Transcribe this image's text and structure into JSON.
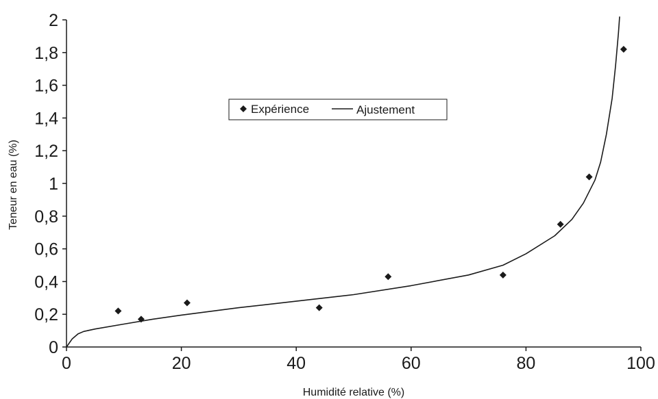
{
  "chart_data": {
    "type": "scatter",
    "title": "",
    "xlabel": "Humidité relative (%)",
    "ylabel": "Teneur en eau (%)",
    "xlim": [
      0,
      100
    ],
    "ylim": [
      0,
      2
    ],
    "grid": false,
    "legend_position": "top-center",
    "x_ticks": [
      "0",
      "20",
      "40",
      "60",
      "80",
      "100"
    ],
    "y_ticks": [
      "0",
      "0,2",
      "0,4",
      "0,6",
      "0,8",
      "1",
      "1,2",
      "1,4",
      "1,6",
      "1,8",
      "2"
    ],
    "series": [
      {
        "name": "Expérience",
        "kind": "scatter",
        "marker": "diamond",
        "color": "#1a1a1a",
        "points": [
          {
            "x": 9,
            "y": 0.22
          },
          {
            "x": 13,
            "y": 0.17
          },
          {
            "x": 21,
            "y": 0.27
          },
          {
            "x": 44,
            "y": 0.24
          },
          {
            "x": 56,
            "y": 0.43
          },
          {
            "x": 76,
            "y": 0.44
          },
          {
            "x": 86,
            "y": 0.75
          },
          {
            "x": 91,
            "y": 1.04
          },
          {
            "x": 97,
            "y": 1.82
          }
        ]
      },
      {
        "name": "Ajustement",
        "kind": "line",
        "color": "#1a1a1a",
        "points": [
          {
            "x": 0,
            "y": 0
          },
          {
            "x": 1,
            "y": 0.05
          },
          {
            "x": 2,
            "y": 0.08
          },
          {
            "x": 3,
            "y": 0.095
          },
          {
            "x": 5,
            "y": 0.11
          },
          {
            "x": 10,
            "y": 0.14
          },
          {
            "x": 15,
            "y": 0.17
          },
          {
            "x": 20,
            "y": 0.195
          },
          {
            "x": 30,
            "y": 0.24
          },
          {
            "x": 40,
            "y": 0.28
          },
          {
            "x": 50,
            "y": 0.32
          },
          {
            "x": 60,
            "y": 0.375
          },
          {
            "x": 70,
            "y": 0.44
          },
          {
            "x": 76,
            "y": 0.5
          },
          {
            "x": 80,
            "y": 0.57
          },
          {
            "x": 85,
            "y": 0.68
          },
          {
            "x": 88,
            "y": 0.78
          },
          {
            "x": 90,
            "y": 0.88
          },
          {
            "x": 92,
            "y": 1.02
          },
          {
            "x": 93,
            "y": 1.13
          },
          {
            "x": 94,
            "y": 1.3
          },
          {
            "x": 95,
            "y": 1.52
          },
          {
            "x": 95.6,
            "y": 1.72
          },
          {
            "x": 96.1,
            "y": 1.92
          },
          {
            "x": 96.3,
            "y": 2.02
          }
        ]
      }
    ]
  }
}
